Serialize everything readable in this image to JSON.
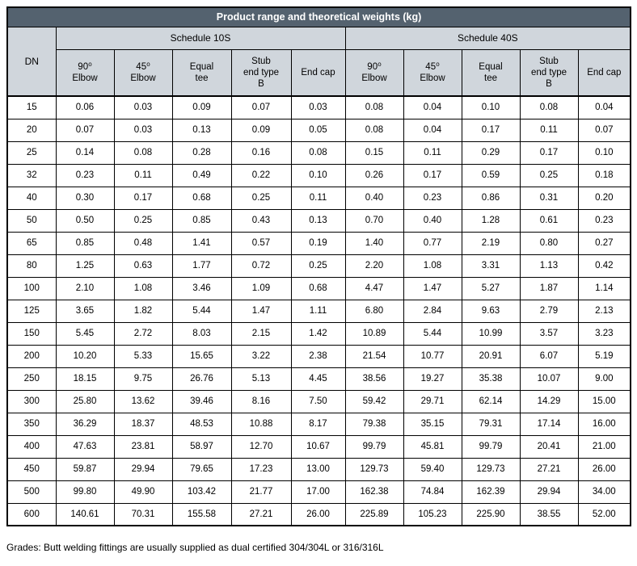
{
  "title": "Product range and theoretical weights (kg)",
  "colors": {
    "title_bar_bg": "#54626F",
    "title_bar_text": "#FFFFFF",
    "header_bg": "#D0D6DC",
    "border": "#000000",
    "body_bg": "#FFFFFF"
  },
  "table": {
    "dn_label": "DN",
    "groups": [
      {
        "label": "Schedule 10S"
      },
      {
        "label": "Schedule 40S"
      }
    ],
    "sub_headers": [
      "90⁰\nElbow",
      "45⁰\nElbow",
      "Equal\ntee",
      "Stub\nend type\nB",
      "End cap"
    ],
    "rows": [
      {
        "dn": "15",
        "s10": [
          "0.06",
          "0.03",
          "0.09",
          "0.07",
          "0.03"
        ],
        "s40": [
          "0.08",
          "0.04",
          "0.10",
          "0.08",
          "0.04"
        ]
      },
      {
        "dn": "20",
        "s10": [
          "0.07",
          "0.03",
          "0.13",
          "0.09",
          "0.05"
        ],
        "s40": [
          "0.08",
          "0.04",
          "0.17",
          "0.11",
          "0.07"
        ]
      },
      {
        "dn": "25",
        "s10": [
          "0.14",
          "0.08",
          "0.28",
          "0.16",
          "0.08"
        ],
        "s40": [
          "0.15",
          "0.11",
          "0.29",
          "0.17",
          "0.10"
        ]
      },
      {
        "dn": "32",
        "s10": [
          "0.23",
          "0.11",
          "0.49",
          "0.22",
          "0.10"
        ],
        "s40": [
          "0.26",
          "0.17",
          "0.59",
          "0.25",
          "0.18"
        ]
      },
      {
        "dn": "40",
        "s10": [
          "0.30",
          "0.17",
          "0.68",
          "0.25",
          "0.11"
        ],
        "s40": [
          "0.40",
          "0.23",
          "0.86",
          "0.31",
          "0.20"
        ]
      },
      {
        "dn": "50",
        "s10": [
          "0.50",
          "0.25",
          "0.85",
          "0.43",
          "0.13"
        ],
        "s40": [
          "0.70",
          "0.40",
          "1.28",
          "0.61",
          "0.23"
        ]
      },
      {
        "dn": "65",
        "s10": [
          "0.85",
          "0.48",
          "1.41",
          "0.57",
          "0.19"
        ],
        "s40": [
          "1.40",
          "0.77",
          "2.19",
          "0.80",
          "0.27"
        ]
      },
      {
        "dn": "80",
        "s10": [
          "1.25",
          "0.63",
          "1.77",
          "0.72",
          "0.25"
        ],
        "s40": [
          "2.20",
          "1.08",
          "3.31",
          "1.13",
          "0.42"
        ]
      },
      {
        "dn": "100",
        "s10": [
          "2.10",
          "1.08",
          "3.46",
          "1.09",
          "0.68"
        ],
        "s40": [
          "4.47",
          "1.47",
          "5.27",
          "1.87",
          "1.14"
        ]
      },
      {
        "dn": "125",
        "s10": [
          "3.65",
          "1.82",
          "5.44",
          "1.47",
          "1.11"
        ],
        "s40": [
          "6.80",
          "2.84",
          "9.63",
          "2.79",
          "2.13"
        ]
      },
      {
        "dn": "150",
        "s10": [
          "5.45",
          "2.72",
          "8.03",
          "2.15",
          "1.42"
        ],
        "s40": [
          "10.89",
          "5.44",
          "10.99",
          "3.57",
          "3.23"
        ]
      },
      {
        "dn": "200",
        "s10": [
          "10.20",
          "5.33",
          "15.65",
          "3.22",
          "2.38"
        ],
        "s40": [
          "21.54",
          "10.77",
          "20.91",
          "6.07",
          "5.19"
        ]
      },
      {
        "dn": "250",
        "s10": [
          "18.15",
          "9.75",
          "26.76",
          "5.13",
          "4.45"
        ],
        "s40": [
          "38.56",
          "19.27",
          "35.38",
          "10.07",
          "9.00"
        ]
      },
      {
        "dn": "300",
        "s10": [
          "25.80",
          "13.62",
          "39.46",
          "8.16",
          "7.50"
        ],
        "s40": [
          "59.42",
          "29.71",
          "62.14",
          "14.29",
          "15.00"
        ]
      },
      {
        "dn": "350",
        "s10": [
          "36.29",
          "18.37",
          "48.53",
          "10.88",
          "8.17"
        ],
        "s40": [
          "79.38",
          "35.15",
          "79.31",
          "17.14",
          "16.00"
        ]
      },
      {
        "dn": "400",
        "s10": [
          "47.63",
          "23.81",
          "58.97",
          "12.70",
          "10.67"
        ],
        "s40": [
          "99.79",
          "45.81",
          "99.79",
          "20.41",
          "21.00"
        ]
      },
      {
        "dn": "450",
        "s10": [
          "59.87",
          "29.94",
          "79.65",
          "17.23",
          "13.00"
        ],
        "s40": [
          "129.73",
          "59.40",
          "129.73",
          "27.21",
          "26.00"
        ]
      },
      {
        "dn": "500",
        "s10": [
          "99.80",
          "49.90",
          "103.42",
          "21.77",
          "17.00"
        ],
        "s40": [
          "162.38",
          "74.84",
          "162.39",
          "29.94",
          "34.00"
        ]
      },
      {
        "dn": "600",
        "s10": [
          "140.61",
          "70.31",
          "155.58",
          "27.21",
          "26.00"
        ],
        "s40": [
          "225.89",
          "105.23",
          "225.90",
          "38.55",
          "52.00"
        ]
      }
    ]
  },
  "footer_note": "Grades: Butt welding fittings are usually supplied as dual certified 304/304L or 316/316L"
}
